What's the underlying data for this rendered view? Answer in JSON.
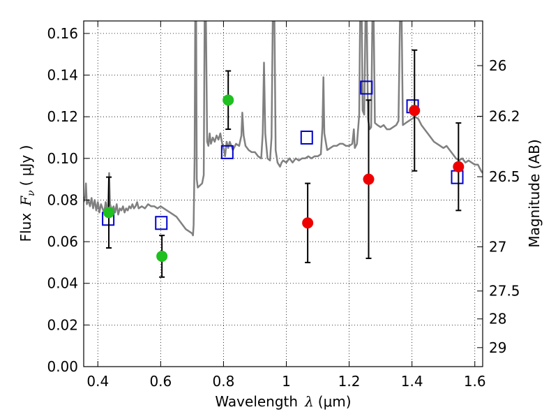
{
  "chart_data": {
    "type": "scatter",
    "xlabel": "Wavelength",
    "xlabel_symbol": "λ",
    "xlabel_unit": "(μm)",
    "ylabel": "Flux",
    "ylabel_symbol": "F",
    "ylabel_subscript": "ν",
    "ylabel_unit": "( μJy )",
    "y2label": "Magnitude (AB)",
    "xlim": [
      0.355,
      1.625
    ],
    "ylim": [
      0.0,
      0.166
    ],
    "grid": true,
    "x_ticks": [
      {
        "value": 0.4,
        "label": "0.4"
      },
      {
        "value": 0.6,
        "label": "0.6"
      },
      {
        "value": 0.8,
        "label": "0.8"
      },
      {
        "value": 1.0,
        "label": "1"
      },
      {
        "value": 1.2,
        "label": "1.2"
      },
      {
        "value": 1.4,
        "label": "1.4"
      },
      {
        "value": 1.6,
        "label": "1.6"
      }
    ],
    "y_ticks": [
      {
        "value": 0.0,
        "label": "0.00"
      },
      {
        "value": 0.02,
        "label": "0.02"
      },
      {
        "value": 0.04,
        "label": "0.04"
      },
      {
        "value": 0.06,
        "label": "0.06"
      },
      {
        "value": 0.08,
        "label": "0.08"
      },
      {
        "value": 0.1,
        "label": "0.10"
      },
      {
        "value": 0.12,
        "label": "0.12"
      },
      {
        "value": 0.14,
        "label": "0.14"
      },
      {
        "value": 0.16,
        "label": "0.16"
      }
    ],
    "y2_ticks": [
      {
        "magnitude": 26,
        "label": "26"
      },
      {
        "magnitude": 26.2,
        "label": "26.2"
      },
      {
        "magnitude": 26.5,
        "label": "26.5"
      },
      {
        "magnitude": 27,
        "label": "27"
      },
      {
        "magnitude": 27.5,
        "label": "27.5"
      },
      {
        "magnitude": 28,
        "label": "28"
      },
      {
        "magnitude": 29,
        "label": "29"
      }
    ],
    "series": [
      {
        "kind": "spectrum",
        "color": "#808080",
        "points": [
          [
            0.355,
            0.079
          ],
          [
            0.36,
            0.082
          ],
          [
            0.362,
            0.088
          ],
          [
            0.365,
            0.078
          ],
          [
            0.37,
            0.08
          ],
          [
            0.375,
            0.077
          ],
          [
            0.38,
            0.081
          ],
          [
            0.385,
            0.076
          ],
          [
            0.39,
            0.08
          ],
          [
            0.395,
            0.075
          ],
          [
            0.4,
            0.079
          ],
          [
            0.405,
            0.074
          ],
          [
            0.41,
            0.078
          ],
          [
            0.415,
            0.076
          ],
          [
            0.42,
            0.074
          ],
          [
            0.425,
            0.079
          ],
          [
            0.43,
            0.074
          ],
          [
            0.433,
            0.08
          ],
          [
            0.436,
            0.093
          ],
          [
            0.439,
            0.078
          ],
          [
            0.445,
            0.075
          ],
          [
            0.45,
            0.077
          ],
          [
            0.455,
            0.074
          ],
          [
            0.46,
            0.078
          ],
          [
            0.465,
            0.073
          ],
          [
            0.47,
            0.076
          ],
          [
            0.475,
            0.075
          ],
          [
            0.48,
            0.077
          ],
          [
            0.485,
            0.074
          ],
          [
            0.49,
            0.076
          ],
          [
            0.495,
            0.075
          ],
          [
            0.5,
            0.077
          ],
          [
            0.505,
            0.076
          ],
          [
            0.51,
            0.078
          ],
          [
            0.515,
            0.076
          ],
          [
            0.52,
            0.077
          ],
          [
            0.525,
            0.079
          ],
          [
            0.53,
            0.076
          ],
          [
            0.54,
            0.077
          ],
          [
            0.55,
            0.076
          ],
          [
            0.56,
            0.078
          ],
          [
            0.57,
            0.077
          ],
          [
            0.58,
            0.077
          ],
          [
            0.59,
            0.076
          ],
          [
            0.6,
            0.077
          ],
          [
            0.61,
            0.076
          ],
          [
            0.62,
            0.075
          ],
          [
            0.63,
            0.074
          ],
          [
            0.64,
            0.073
          ],
          [
            0.65,
            0.072
          ],
          [
            0.66,
            0.07
          ],
          [
            0.67,
            0.068
          ],
          [
            0.68,
            0.066
          ],
          [
            0.69,
            0.065
          ],
          [
            0.7,
            0.064
          ],
          [
            0.703,
            0.063
          ],
          [
            0.705,
            0.068
          ],
          [
            0.708,
            0.1
          ],
          [
            0.71,
            0.168
          ],
          [
            0.713,
            0.168
          ],
          [
            0.715,
            0.09
          ],
          [
            0.718,
            0.086
          ],
          [
            0.725,
            0.087
          ],
          [
            0.732,
            0.088
          ],
          [
            0.737,
            0.092
          ],
          [
            0.74,
            0.168
          ],
          [
            0.744,
            0.168
          ],
          [
            0.748,
            0.108
          ],
          [
            0.752,
            0.106
          ],
          [
            0.756,
            0.112
          ],
          [
            0.76,
            0.107
          ],
          [
            0.766,
            0.11
          ],
          [
            0.772,
            0.108
          ],
          [
            0.778,
            0.111
          ],
          [
            0.784,
            0.109
          ],
          [
            0.79,
            0.112
          ],
          [
            0.796,
            0.107
          ],
          [
            0.8,
            0.105
          ],
          [
            0.805,
            0.101
          ],
          [
            0.81,
            0.108
          ],
          [
            0.815,
            0.105
          ],
          [
            0.82,
            0.108
          ],
          [
            0.83,
            0.104
          ],
          [
            0.84,
            0.107
          ],
          [
            0.85,
            0.106
          ],
          [
            0.857,
            0.111
          ],
          [
            0.86,
            0.122
          ],
          [
            0.864,
            0.111
          ],
          [
            0.87,
            0.106
          ],
          [
            0.88,
            0.104
          ],
          [
            0.89,
            0.103
          ],
          [
            0.9,
            0.103
          ],
          [
            0.91,
            0.101
          ],
          [
            0.92,
            0.1
          ],
          [
            0.925,
            0.112
          ],
          [
            0.929,
            0.146
          ],
          [
            0.933,
            0.112
          ],
          [
            0.94,
            0.1
          ],
          [
            0.948,
            0.099
          ],
          [
            0.953,
            0.11
          ],
          [
            0.957,
            0.168
          ],
          [
            0.962,
            0.168
          ],
          [
            0.966,
            0.104
          ],
          [
            0.972,
            0.098
          ],
          [
            0.98,
            0.096
          ],
          [
            0.985,
            0.098
          ],
          [
            0.99,
            0.099
          ],
          [
            1.0,
            0.098
          ],
          [
            1.01,
            0.1
          ],
          [
            1.02,
            0.098
          ],
          [
            1.03,
            0.1
          ],
          [
            1.04,
            0.099
          ],
          [
            1.05,
            0.1
          ],
          [
            1.06,
            0.1
          ],
          [
            1.07,
            0.101
          ],
          [
            1.08,
            0.1
          ],
          [
            1.09,
            0.101
          ],
          [
            1.1,
            0.101
          ],
          [
            1.11,
            0.102
          ],
          [
            1.115,
            0.115
          ],
          [
            1.118,
            0.139
          ],
          [
            1.121,
            0.112
          ],
          [
            1.13,
            0.104
          ],
          [
            1.14,
            0.105
          ],
          [
            1.15,
            0.106
          ],
          [
            1.16,
            0.106
          ],
          [
            1.17,
            0.107
          ],
          [
            1.18,
            0.107
          ],
          [
            1.19,
            0.106
          ],
          [
            1.2,
            0.106
          ],
          [
            1.21,
            0.107
          ],
          [
            1.215,
            0.114
          ],
          [
            1.218,
            0.105
          ],
          [
            1.225,
            0.107
          ],
          [
            1.232,
            0.121
          ],
          [
            1.235,
            0.168
          ],
          [
            1.24,
            0.168
          ],
          [
            1.243,
            0.123
          ],
          [
            1.248,
            0.121
          ],
          [
            1.252,
            0.168
          ],
          [
            1.256,
            0.168
          ],
          [
            1.26,
            0.119
          ],
          [
            1.265,
            0.114
          ],
          [
            1.27,
            0.115
          ],
          [
            1.274,
            0.168
          ],
          [
            1.278,
            0.168
          ],
          [
            1.282,
            0.117
          ],
          [
            1.29,
            0.116
          ],
          [
            1.3,
            0.115
          ],
          [
            1.31,
            0.116
          ],
          [
            1.32,
            0.114
          ],
          [
            1.33,
            0.114
          ],
          [
            1.34,
            0.115
          ],
          [
            1.35,
            0.116
          ],
          [
            1.357,
            0.118
          ],
          [
            1.362,
            0.168
          ],
          [
            1.367,
            0.168
          ],
          [
            1.371,
            0.116
          ],
          [
            1.38,
            0.117
          ],
          [
            1.39,
            0.118
          ],
          [
            1.4,
            0.119
          ],
          [
            1.41,
            0.12
          ],
          [
            1.42,
            0.119
          ],
          [
            1.43,
            0.116
          ],
          [
            1.44,
            0.114
          ],
          [
            1.45,
            0.112
          ],
          [
            1.46,
            0.11
          ],
          [
            1.47,
            0.108
          ],
          [
            1.48,
            0.107
          ],
          [
            1.49,
            0.106
          ],
          [
            1.5,
            0.105
          ],
          [
            1.51,
            0.106
          ],
          [
            1.52,
            0.104
          ],
          [
            1.53,
            0.102
          ],
          [
            1.54,
            0.1
          ],
          [
            1.55,
            0.099
          ],
          [
            1.56,
            0.1
          ],
          [
            1.57,
            0.098
          ],
          [
            1.58,
            0.099
          ],
          [
            1.59,
            0.098
          ],
          [
            1.6,
            0.097
          ],
          [
            1.61,
            0.097
          ],
          [
            1.62,
            0.094
          ],
          [
            1.625,
            0.093
          ]
        ]
      },
      {
        "kind": "squares",
        "color": "#0000cc",
        "points": [
          [
            0.433,
            0.071
          ],
          [
            0.602,
            0.069
          ],
          [
            0.812,
            0.103
          ],
          [
            1.065,
            0.11
          ],
          [
            1.255,
            0.134
          ],
          [
            1.402,
            0.125
          ],
          [
            1.544,
            0.091
          ]
        ]
      },
      {
        "kind": "points",
        "color": "#1fc01f",
        "points": [
          {
            "x": 0.435,
            "y": 0.074,
            "err": 0.017
          },
          {
            "x": 0.604,
            "y": 0.053,
            "err": 0.01
          },
          {
            "x": 0.815,
            "y": 0.128,
            "err": 0.014
          }
        ]
      },
      {
        "kind": "points",
        "color": "#ee0000",
        "points": [
          {
            "x": 1.068,
            "y": 0.069,
            "err": 0.019
          },
          {
            "x": 1.262,
            "y": 0.09,
            "err": 0.038
          },
          {
            "x": 1.408,
            "y": 0.123,
            "err": 0.029
          },
          {
            "x": 1.548,
            "y": 0.096,
            "err": 0.021
          }
        ]
      }
    ]
  }
}
